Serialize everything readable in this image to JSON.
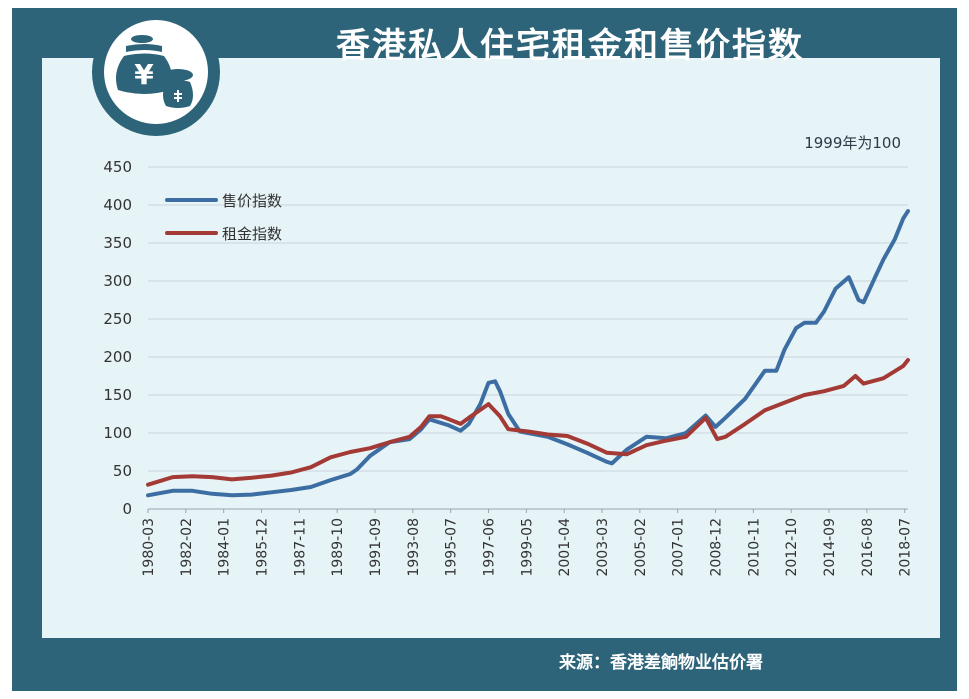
{
  "title": "香港私人住宅租金和售价指数",
  "unit_note": "1999年为100",
  "source": "来源：香港差餉物业估价署",
  "logo": {
    "icon": "money-bag-yuan-icon",
    "symbol": "¥"
  },
  "colors": {
    "frame": "#2d6479",
    "panel": "#e6f3f7",
    "price": "#3d6ea3",
    "rent": "#a33a35"
  },
  "chart_data": {
    "type": "line",
    "title": "香港私人住宅租金和售价指数",
    "xlabel": "",
    "ylabel": "",
    "ylim": [
      0,
      450
    ],
    "yticks": [
      0,
      50,
      100,
      150,
      200,
      250,
      300,
      350,
      400,
      450
    ],
    "xticks": [
      "1980-03",
      "1982-02",
      "1984-01",
      "1985-12",
      "1987-11",
      "1989-10",
      "1991-09",
      "1993-08",
      "1995-07",
      "1997-06",
      "1999-05",
      "2001-04",
      "2003-03",
      "2005-02",
      "2007-01",
      "2008-12",
      "2010-11",
      "2012-10",
      "2014-09",
      "2016-08",
      "2018-07"
    ],
    "grid": true,
    "legend": "top-left",
    "series": [
      {
        "name": "售价指数",
        "points": [
          [
            "1980-03",
            18
          ],
          [
            "1981-06",
            24
          ],
          [
            "1982-06",
            24
          ],
          [
            "1983-06",
            20
          ],
          [
            "1984-06",
            18
          ],
          [
            "1985-06",
            19
          ],
          [
            "1986-06",
            22
          ],
          [
            "1987-06",
            25
          ],
          [
            "1988-06",
            29
          ],
          [
            "1989-06",
            38
          ],
          [
            "1990-06",
            46
          ],
          [
            "1990-10",
            52
          ],
          [
            "1991-06",
            70
          ],
          [
            "1992-06",
            88
          ],
          [
            "1993-06",
            92
          ],
          [
            "1994-01",
            105
          ],
          [
            "1994-06",
            118
          ],
          [
            "1995-06",
            110
          ],
          [
            "1996-01",
            103
          ],
          [
            "1996-06",
            112
          ],
          [
            "1997-01",
            138
          ],
          [
            "1997-06",
            166
          ],
          [
            "1997-10",
            168
          ],
          [
            "1998-01",
            155
          ],
          [
            "1998-06",
            125
          ],
          [
            "1999-01",
            102
          ],
          [
            "1999-06",
            100
          ],
          [
            "2000-06",
            95
          ],
          [
            "2001-06",
            85
          ],
          [
            "2002-06",
            74
          ],
          [
            "2003-06",
            62
          ],
          [
            "2003-09",
            60
          ],
          [
            "2004-06",
            78
          ],
          [
            "2005-06",
            95
          ],
          [
            "2006-06",
            93
          ],
          [
            "2007-06",
            100
          ],
          [
            "2008-06",
            123
          ],
          [
            "2008-12",
            108
          ],
          [
            "2009-06",
            120
          ],
          [
            "2010-06",
            145
          ],
          [
            "2011-06",
            182
          ],
          [
            "2012-01",
            182
          ],
          [
            "2012-06",
            210
          ],
          [
            "2013-01",
            238
          ],
          [
            "2013-06",
            245
          ],
          [
            "2014-01",
            245
          ],
          [
            "2014-06",
            260
          ],
          [
            "2015-01",
            290
          ],
          [
            "2015-09",
            305
          ],
          [
            "2016-03",
            275
          ],
          [
            "2016-06",
            272
          ],
          [
            "2017-01",
            305
          ],
          [
            "2017-06",
            328
          ],
          [
            "2018-01",
            355
          ],
          [
            "2018-06",
            382
          ],
          [
            "2018-09",
            392
          ]
        ]
      },
      {
        "name": "租金指数",
        "points": [
          [
            "1980-03",
            32
          ],
          [
            "1981-06",
            42
          ],
          [
            "1982-06",
            43
          ],
          [
            "1983-06",
            42
          ],
          [
            "1984-06",
            39
          ],
          [
            "1985-06",
            41
          ],
          [
            "1986-06",
            44
          ],
          [
            "1987-06",
            48
          ],
          [
            "1988-06",
            55
          ],
          [
            "1989-06",
            68
          ],
          [
            "1990-06",
            75
          ],
          [
            "1991-06",
            80
          ],
          [
            "1992-06",
            88
          ],
          [
            "1993-06",
            95
          ],
          [
            "1994-01",
            108
          ],
          [
            "1994-06",
            122
          ],
          [
            "1995-01",
            122
          ],
          [
            "1995-06",
            118
          ],
          [
            "1996-01",
            112
          ],
          [
            "1996-06",
            120
          ],
          [
            "1997-06",
            138
          ],
          [
            "1998-01",
            122
          ],
          [
            "1998-06",
            105
          ],
          [
            "1999-06",
            102
          ],
          [
            "2000-06",
            98
          ],
          [
            "2001-06",
            96
          ],
          [
            "2002-06",
            86
          ],
          [
            "2003-06",
            74
          ],
          [
            "2004-06",
            72
          ],
          [
            "2005-06",
            84
          ],
          [
            "2006-06",
            90
          ],
          [
            "2007-06",
            95
          ],
          [
            "2008-06",
            120
          ],
          [
            "2009-01",
            92
          ],
          [
            "2009-06",
            95
          ],
          [
            "2010-06",
            112
          ],
          [
            "2011-06",
            130
          ],
          [
            "2012-06",
            140
          ],
          [
            "2013-06",
            150
          ],
          [
            "2014-06",
            155
          ],
          [
            "2015-06",
            162
          ],
          [
            "2016-01",
            175
          ],
          [
            "2016-06",
            165
          ],
          [
            "2017-06",
            172
          ],
          [
            "2018-06",
            188
          ],
          [
            "2018-09",
            196
          ]
        ]
      }
    ]
  }
}
